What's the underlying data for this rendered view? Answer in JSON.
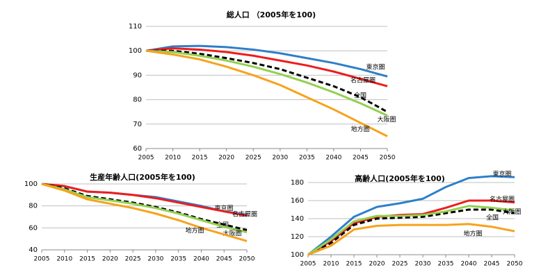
{
  "chart_data": [
    {
      "type": "line",
      "title": "総人口 （2005年を100)",
      "x": [
        2005,
        2010,
        2015,
        2020,
        2025,
        2030,
        2035,
        2040,
        2045,
        2050
      ],
      "xlim": [
        2005,
        2050
      ],
      "xticks": [
        2005,
        2010,
        2015,
        2020,
        2025,
        2030,
        2035,
        2040,
        2045,
        2050
      ],
      "ylim": [
        60,
        110
      ],
      "yticks": [
        60,
        70,
        80,
        90,
        100,
        110
      ],
      "grid": true,
      "series": [
        {
          "name": "東京圏",
          "color": "#2e7fc8",
          "values": [
            100,
            101.8,
            102,
            101.5,
            100.5,
            99,
            97,
            95,
            92.5,
            89.5
          ]
        },
        {
          "name": "名古屋圏",
          "color": "#ee1c1c",
          "values": [
            100,
            101,
            100.5,
            99.5,
            98,
            96,
            94,
            91.5,
            88.5,
            85.5
          ]
        },
        {
          "name": "全国",
          "color": "#000000",
          "dashed": true,
          "values": [
            100,
            100,
            98.8,
            97,
            95,
            92.5,
            89,
            85.5,
            81,
            75
          ]
        },
        {
          "name": "大阪圏",
          "color": "#92d050",
          "values": [
            100,
            99.5,
            98,
            96,
            93.5,
            90.5,
            87,
            83,
            78.5,
            73.5
          ]
        },
        {
          "name": "地方圏",
          "color": "#f7a21b",
          "values": [
            100,
            98.5,
            96.5,
            93.5,
            90,
            86,
            81,
            76,
            70.5,
            65
          ]
        }
      ]
    },
    {
      "type": "line",
      "title": "生産年齢人口(2005年を100)",
      "x": [
        2005,
        2010,
        2015,
        2020,
        2025,
        2030,
        2035,
        2040,
        2045,
        2050
      ],
      "xlim": [
        2005,
        2050
      ],
      "xticks": [
        2005,
        2010,
        2015,
        2020,
        2025,
        2030,
        2035,
        2040,
        2045,
        2050
      ],
      "ylim": [
        40,
        100
      ],
      "yticks": [
        40,
        60,
        80,
        100
      ],
      "grid": true,
      "series": [
        {
          "name": "東京圏",
          "color": "#2e7fc8",
          "values": [
            100,
            98,
            93,
            92,
            90,
            88,
            84,
            80,
            75,
            72
          ]
        },
        {
          "name": "名古屋圏",
          "color": "#ee1c1c",
          "values": [
            100,
            98,
            93,
            92,
            90,
            87,
            83,
            79,
            75,
            71
          ]
        },
        {
          "name": "全国",
          "color": "#000000",
          "dashed": true,
          "values": [
            100,
            96,
            89,
            86,
            83,
            79,
            74,
            68,
            63,
            58
          ]
        },
        {
          "name": "大阪圏",
          "color": "#92d050",
          "values": [
            100,
            95,
            88,
            85,
            82,
            78,
            73,
            67,
            61,
            56
          ]
        },
        {
          "name": "地方圏",
          "color": "#f7a21b",
          "values": [
            100,
            94,
            86,
            82,
            78,
            73,
            67,
            60,
            54,
            48
          ]
        }
      ]
    },
    {
      "type": "line",
      "title": "高齢人口(2005年を100)",
      "x": [
        2005,
        2010,
        2015,
        2020,
        2025,
        2030,
        2035,
        2040,
        2045,
        2050
      ],
      "xlim": [
        2005,
        2050
      ],
      "xticks": [
        2005,
        2010,
        2015,
        2020,
        2025,
        2030,
        2035,
        2040,
        2045,
        2050
      ],
      "ylim": [
        100,
        190
      ],
      "yticks": [
        100,
        120,
        140,
        160,
        180
      ],
      "grid": true,
      "series": [
        {
          "name": "東京圏",
          "color": "#2e7fc8",
          "values": [
            100,
            120,
            142,
            153,
            157,
            162,
            175,
            185,
            187,
            186
          ]
        },
        {
          "name": "名古屋圏",
          "color": "#ee1c1c",
          "values": [
            100,
            115,
            135,
            142,
            144,
            145,
            152,
            160,
            160,
            158
          ]
        },
        {
          "name": "全国",
          "color": "#000000",
          "dashed": true,
          "values": [
            100,
            113,
            133,
            140,
            141,
            142,
            146,
            150,
            150,
            146
          ]
        },
        {
          "name": "大阪圏",
          "color": "#92d050",
          "values": [
            100,
            117,
            137,
            143,
            143,
            144,
            148,
            154,
            152,
            149
          ]
        },
        {
          "name": "地方圏",
          "color": "#f7a21b",
          "values": [
            100,
            110,
            128,
            132,
            133,
            133,
            133,
            134,
            131,
            126
          ]
        }
      ]
    }
  ]
}
